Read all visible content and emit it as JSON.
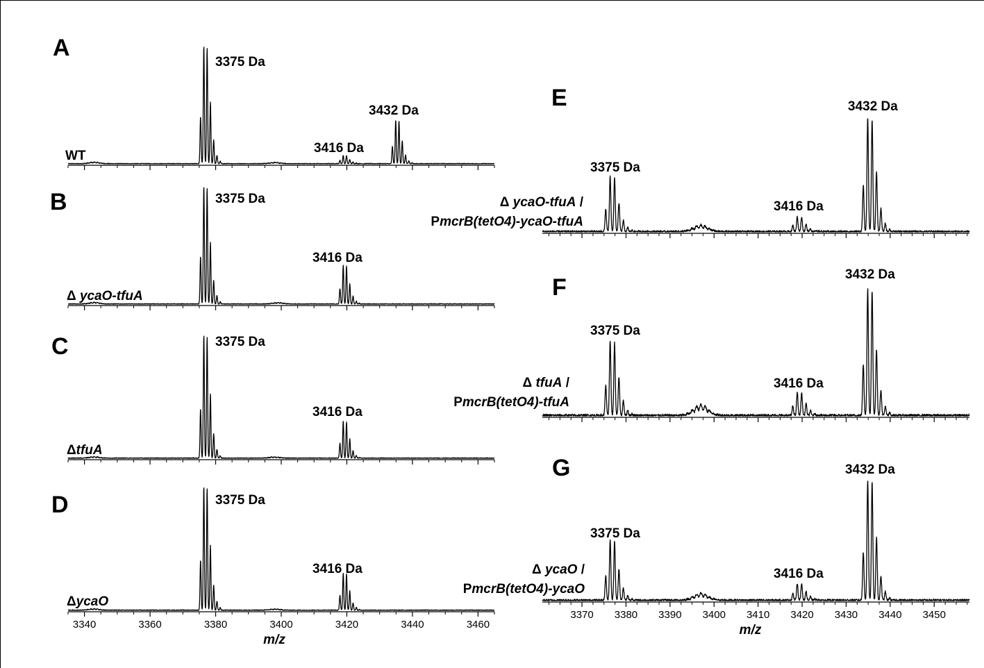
{
  "chart_data": [
    {
      "panel": "A",
      "type": "line",
      "strain_label_parts": [
        {
          "t": "WT",
          "i": false
        }
      ],
      "xlim": [
        3335,
        3465
      ],
      "ylim": [
        0,
        100
      ],
      "x_ticks": [
        3340,
        3360,
        3380,
        3400,
        3420,
        3440,
        3460
      ],
      "x_tick_labels_shown": false,
      "x_axis_title": "",
      "isotope_spacing": 1,
      "noise": 0.6,
      "peaks": [
        {
          "label": "3375 Da",
          "center": 3377,
          "height": 100
        },
        {
          "label": "3416 Da",
          "center": 3419.5,
          "height": 7
        },
        {
          "label": "3432 Da",
          "center": 3435.5,
          "height": 37
        }
      ],
      "bumps": [
        {
          "center": 3343,
          "height": 1.5
        },
        {
          "center": 3398,
          "height": 1.2
        }
      ]
    },
    {
      "panel": "B",
      "type": "line",
      "strain_label_parts": [
        {
          "t": "Δ ",
          "i": false
        },
        {
          "t": "ycaO-tfuA",
          "i": true
        }
      ],
      "xlim": [
        3335,
        3465
      ],
      "ylim": [
        0,
        100
      ],
      "x_ticks": [
        3340,
        3360,
        3380,
        3400,
        3420,
        3440,
        3460
      ],
      "x_tick_labels_shown": false,
      "x_axis_title": "",
      "isotope_spacing": 1,
      "noise": 0.6,
      "peaks": [
        {
          "label": "3375 Da",
          "center": 3377,
          "height": 100
        },
        {
          "label": "3416 Da",
          "center": 3419.5,
          "height": 33
        }
      ],
      "bumps": [
        {
          "center": 3343,
          "height": 1.5
        },
        {
          "center": 3399,
          "height": 1.2
        }
      ]
    },
    {
      "panel": "C",
      "type": "line",
      "strain_label_parts": [
        {
          "t": "Δ",
          "i": false
        },
        {
          "t": "tfuA",
          "i": true
        }
      ],
      "xlim": [
        3335,
        3465
      ],
      "ylim": [
        0,
        100
      ],
      "x_ticks": [
        3340,
        3360,
        3380,
        3400,
        3420,
        3440,
        3460
      ],
      "x_tick_labels_shown": false,
      "x_axis_title": "",
      "isotope_spacing": 1,
      "noise": 0.6,
      "peaks": [
        {
          "label": "3375 Da",
          "center": 3377,
          "height": 100
        },
        {
          "label": "3416 Da",
          "center": 3419.5,
          "height": 30
        }
      ],
      "bumps": [
        {
          "center": 3343,
          "height": 1.2
        },
        {
          "center": 3398,
          "height": 1
        }
      ]
    },
    {
      "panel": "D",
      "type": "line",
      "strain_label_parts": [
        {
          "t": "Δ",
          "i": false
        },
        {
          "t": "ycaO",
          "i": true
        }
      ],
      "xlim": [
        3335,
        3465
      ],
      "ylim": [
        0,
        100
      ],
      "x_ticks": [
        3340,
        3360,
        3380,
        3400,
        3420,
        3440,
        3460
      ],
      "x_tick_labels_shown": true,
      "x_axis_title": "m/z",
      "isotope_spacing": 1,
      "noise": 0.6,
      "peaks": [
        {
          "label": "3375 Da",
          "center": 3377,
          "height": 100
        },
        {
          "label": "3416 Da",
          "center": 3419.5,
          "height": 30
        }
      ],
      "bumps": [
        {
          "center": 3343,
          "height": 1.2
        },
        {
          "center": 3398,
          "height": 1
        }
      ]
    },
    {
      "panel": "E",
      "type": "line",
      "strain_label_lines": [
        [
          {
            "t": "Δ ",
            "i": false
          },
          {
            "t": "ycaO-tfuA",
            "i": true
          },
          {
            "t": " /",
            "i": false
          }
        ],
        [
          {
            "t": "P",
            "i": false
          },
          {
            "t": "mcrB(tetO4)-ycaO-tfuA",
            "i": true
          }
        ]
      ],
      "xlim": [
        3361,
        3458
      ],
      "ylim": [
        0,
        100
      ],
      "x_ticks": [
        3370,
        3380,
        3390,
        3400,
        3410,
        3420,
        3430,
        3440,
        3450
      ],
      "x_tick_labels_shown": false,
      "x_axis_title": "",
      "isotope_spacing": 1,
      "noise": 1.6,
      "peaks": [
        {
          "label": "3375 Da",
          "center": 3377,
          "height": 48
        },
        {
          "label": "3416 Da",
          "center": 3419.5,
          "height": 13
        },
        {
          "label": "3432 Da",
          "center": 3435.5,
          "height": 100
        }
      ],
      "bumps": [
        {
          "center": 3397,
          "height": 6
        }
      ]
    },
    {
      "panel": "F",
      "type": "line",
      "strain_label_lines": [
        [
          {
            "t": "Δ ",
            "i": false
          },
          {
            "t": "tfuA",
            "i": true
          },
          {
            "t": " /",
            "i": false
          }
        ],
        [
          {
            "t": "P",
            "i": false
          },
          {
            "t": "mcrB(tetO4)-tfuA",
            "i": true
          }
        ]
      ],
      "xlim": [
        3361,
        3458
      ],
      "ylim": [
        0,
        100
      ],
      "x_ticks": [
        3370,
        3380,
        3390,
        3400,
        3410,
        3420,
        3430,
        3440,
        3450
      ],
      "x_tick_labels_shown": false,
      "x_axis_title": "",
      "isotope_spacing": 1,
      "noise": 1.8,
      "peaks": [
        {
          "label": "3375 Da",
          "center": 3377,
          "height": 58
        },
        {
          "label": "3416 Da",
          "center": 3419.5,
          "height": 18
        },
        {
          "label": "3432 Da",
          "center": 3435.5,
          "height": 100
        }
      ],
      "bumps": [
        {
          "center": 3397,
          "height": 9
        }
      ]
    },
    {
      "panel": "G",
      "type": "line",
      "strain_label_lines": [
        [
          {
            "t": "Δ ",
            "i": false
          },
          {
            "t": "ycaO",
            "i": true
          },
          {
            "t": " /",
            "i": false
          }
        ],
        [
          {
            "t": "P",
            "i": false
          },
          {
            "t": "mcrB(tetO4)-ycaO",
            "i": true
          }
        ]
      ],
      "xlim": [
        3361,
        3458
      ],
      "ylim": [
        0,
        100
      ],
      "x_ticks": [
        3370,
        3380,
        3390,
        3400,
        3410,
        3420,
        3430,
        3440,
        3450
      ],
      "x_tick_labels_shown": true,
      "x_axis_title": "m/z",
      "isotope_spacing": 1,
      "noise": 1.6,
      "peaks": [
        {
          "label": "3375 Da",
          "center": 3377,
          "height": 50
        },
        {
          "label": "3416 Da",
          "center": 3419.5,
          "height": 14
        },
        {
          "label": "3432 Da",
          "center": 3435.5,
          "height": 100
        }
      ],
      "bumps": [
        {
          "center": 3397,
          "height": 6
        }
      ]
    }
  ]
}
